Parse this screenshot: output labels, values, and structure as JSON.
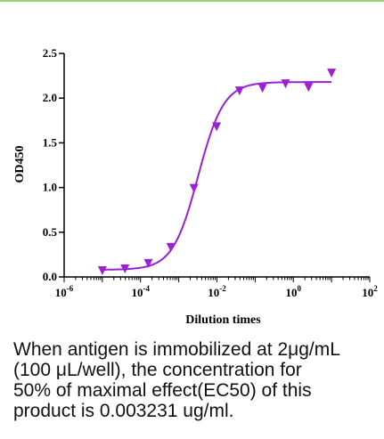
{
  "chart_data": {
    "type": "scatter",
    "title": "",
    "xlabel": "Dilution times",
    "ylabel": "OD450",
    "xscale": "log",
    "xlim": [
      1e-06,
      100
    ],
    "ylim": [
      0,
      2.5
    ],
    "x_ticks": [
      {
        "base": "10",
        "exp": "-6"
      },
      {
        "base": "10",
        "exp": "-4"
      },
      {
        "base": "10",
        "exp": "-2"
      },
      {
        "base": "10",
        "exp": "0"
      },
      {
        "base": "10",
        "exp": "2"
      }
    ],
    "y_ticks": [
      "0.0",
      "0.5",
      "1.0",
      "1.5",
      "2.0",
      "2.5"
    ],
    "y_tick_values": [
      0,
      0.5,
      1.0,
      1.5,
      2.0,
      2.5
    ],
    "color": "#9b1fd6",
    "marker": "triangle-down",
    "series": [
      {
        "x": [
          1e-05,
          3.9e-05,
          0.00016,
          0.00062,
          0.0025,
          0.0098,
          0.039,
          0.156,
          0.625,
          2.5,
          10
        ],
        "y": [
          0.08,
          0.1,
          0.16,
          0.34,
          1.0,
          1.69,
          2.09,
          2.12,
          2.17,
          2.13,
          2.29
        ]
      }
    ],
    "fit": {
      "type": "4PL",
      "bottom": 0.08,
      "top": 2.18,
      "ec50": 0.003231,
      "hill": 1.3
    },
    "grid": false
  },
  "caption": "When antigen is immobilized at 2μg/mL\n(100 μL/well), the concentration for\n50% of maximal effect(EC50) of this\nproduct is 0.003231 ug/ml."
}
